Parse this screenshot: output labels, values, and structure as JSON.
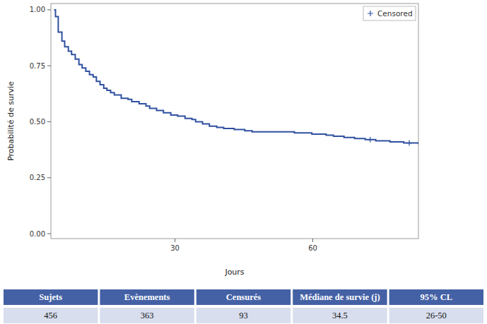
{
  "chart_data": {
    "type": "survival",
    "xlabel": "Jours",
    "ylabel": "Probabilité de survie",
    "xlim": [
      3,
      83
    ],
    "ylim": [
      -0.022,
      1.028
    ],
    "xticks": [
      30,
      60
    ],
    "yticks": [
      {
        "value": 0,
        "label": "0.00"
      },
      {
        "value": 0.25,
        "label": "0.25"
      },
      {
        "value": 0.5,
        "label": "0.50"
      },
      {
        "value": 0.75,
        "label": "0.75"
      },
      {
        "value": 1,
        "label": "1.00"
      }
    ],
    "grid": false,
    "legend": "top-right",
    "series": [
      {
        "type": "step",
        "color": "#2f50a0",
        "line_style": "solid",
        "x": [
          3.7,
          4.0,
          4.6,
          5.4,
          6.0,
          6.8,
          7.5,
          8.3,
          9.1,
          9.8,
          10.6,
          11.4,
          12.2,
          12.9,
          13.7,
          14.5,
          15.2,
          16.0,
          16.8,
          18.3,
          19.8,
          20.6,
          22.2,
          23.7,
          24.5,
          26.0,
          27.5,
          29.1,
          30.6,
          32.2,
          33.7,
          34.5,
          36.0,
          37.5,
          39.1,
          40.6,
          42.9,
          45.2,
          46.8,
          56.0,
          59.8,
          62.9,
          64.5,
          66.8,
          69.1,
          71.4,
          73.7,
          76.8,
          79.8,
          83.0
        ],
        "values": [
          1.0,
          0.97,
          0.9,
          0.86,
          0.835,
          0.815,
          0.8,
          0.78,
          0.755,
          0.74,
          0.725,
          0.71,
          0.7,
          0.68,
          0.665,
          0.65,
          0.64,
          0.63,
          0.62,
          0.605,
          0.6,
          0.59,
          0.58,
          0.57,
          0.56,
          0.55,
          0.54,
          0.53,
          0.525,
          0.515,
          0.51,
          0.5,
          0.49,
          0.48,
          0.475,
          0.47,
          0.465,
          0.46,
          0.455,
          0.45,
          0.445,
          0.44,
          0.435,
          0.43,
          0.425,
          0.42,
          0.415,
          0.41,
          0.405,
          0.4
        ]
      },
      {
        "name": "Censored",
        "type": "scatter",
        "marker": "plus",
        "color": "#2f50a0",
        "x": [
          72.5,
          81.0
        ],
        "values": [
          0.42,
          0.405
        ]
      }
    ]
  },
  "table": {
    "header": [
      "Sujets",
      "Evènements",
      "Censurés",
      "Médiane de survie (j)",
      "95% CL"
    ],
    "rows": [
      [
        456,
        363,
        93,
        34.5,
        "26-50"
      ]
    ]
  }
}
